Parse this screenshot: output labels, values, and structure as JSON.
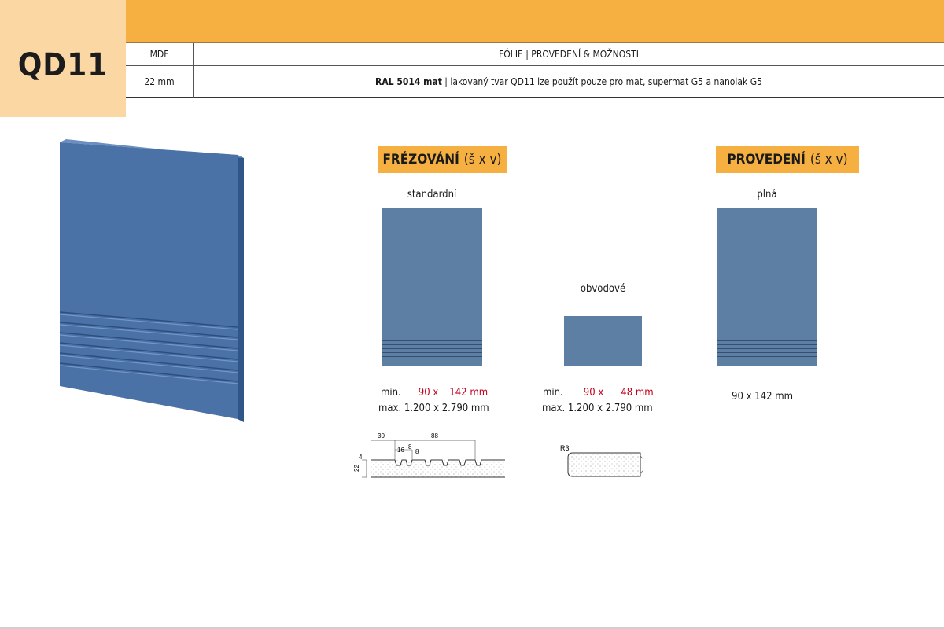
{
  "header": {
    "code": "QD11",
    "col1_header": "MDF",
    "col2_header": "FÓLIE | PROVEDENÍ & MOŽNOSTI",
    "col1_value": "22 mm",
    "col2_value_bold": "RAL 5014 mat",
    "col2_value_rest": " | lakovaný tvar QD11 lze použít pouze pro mat, supermat G5 a nanolak G5"
  },
  "milling": {
    "title": "FRÉZOVÁNÍ",
    "title_unit": "(š x v)",
    "standard_label": "standardní",
    "standard_min_prefix": "min.",
    "standard_min_w": "90 x",
    "standard_min_h": "142 mm",
    "standard_max": "max. 1.200 x 2.790 mm",
    "perimeter_label": "obvodové",
    "perimeter_min_prefix": "min.",
    "perimeter_min_w": "90 x",
    "perimeter_min_h": "48 mm",
    "perimeter_max": "max. 1.200 x 2.790 mm"
  },
  "design": {
    "title": "PROVEDENÍ",
    "title_unit": "(š x v)",
    "solid_label": "plná",
    "solid_size": "90 x 142 mm"
  },
  "profile": {
    "dim_30": "30",
    "dim_88": "88",
    "dim_16": "16",
    "dim_8a": "8",
    "dim_8b": "8",
    "dim_4": "4",
    "dim_22": "22",
    "radius": "R3"
  },
  "colors": {
    "orange": "#f6b041",
    "peach": "#fbd7a4",
    "panel_blue": "#5c7fa3",
    "door_blue": "#4a72a6",
    "red": "#c0001a"
  }
}
